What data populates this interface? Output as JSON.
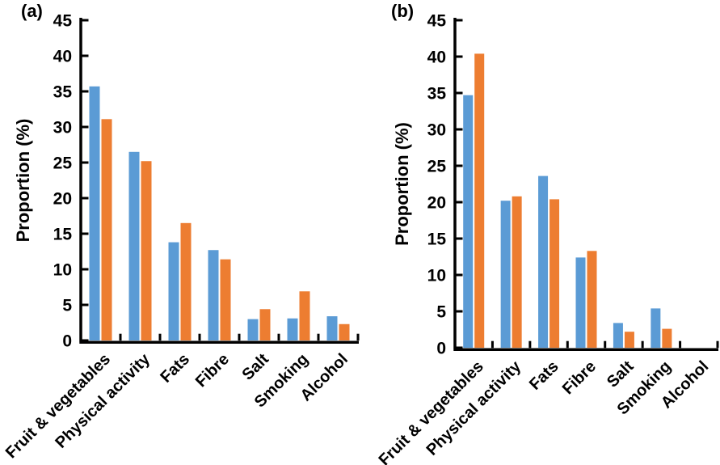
{
  "figure": {
    "background": "#ffffff",
    "axis_color": "#000000"
  },
  "chart_data": [
    {
      "type": "bar",
      "panel_label": "(a)",
      "ylabel": "Proportion (%)",
      "xlabel": "",
      "ylim": [
        0,
        45
      ],
      "ytick_step": 5,
      "ytick_labels": [
        "0",
        "5",
        "10",
        "15",
        "20",
        "25",
        "30",
        "35",
        "40",
        "45"
      ],
      "grid": false,
      "legend_position": "none",
      "categories": [
        "Fruit & vegetables",
        "Physical activity",
        "Fats",
        "Fibre",
        "Salt",
        "Smoking",
        "Alcohol"
      ],
      "series": [
        {
          "name": "blue",
          "color": "#5B9BD5",
          "values": [
            35.7,
            26.5,
            13.8,
            12.7,
            3.0,
            3.1,
            3.4
          ]
        },
        {
          "name": "orange",
          "color": "#ED7D31",
          "values": [
            31.1,
            25.2,
            16.5,
            11.4,
            4.4,
            6.9,
            2.3
          ]
        }
      ]
    },
    {
      "type": "bar",
      "panel_label": "(b)",
      "ylabel": "Proportion (%)",
      "xlabel": "",
      "ylim": [
        0,
        45
      ],
      "ytick_step": 5,
      "ytick_labels": [
        "0",
        "5",
        "10",
        "15",
        "20",
        "25",
        "30",
        "35",
        "40",
        "45"
      ],
      "grid": false,
      "legend_position": "none",
      "categories": [
        "Fruit & vegetables",
        "Physical activity",
        "Fats",
        "Fibre",
        "Salt",
        "Smoking",
        "Alcohol"
      ],
      "series": [
        {
          "name": "blue",
          "color": "#5B9BD5",
          "values": [
            34.7,
            20.2,
            23.6,
            12.4,
            3.4,
            5.4,
            0
          ]
        },
        {
          "name": "orange",
          "color": "#ED7D31",
          "values": [
            40.4,
            20.8,
            20.4,
            13.3,
            2.2,
            2.6,
            0
          ]
        }
      ]
    }
  ]
}
